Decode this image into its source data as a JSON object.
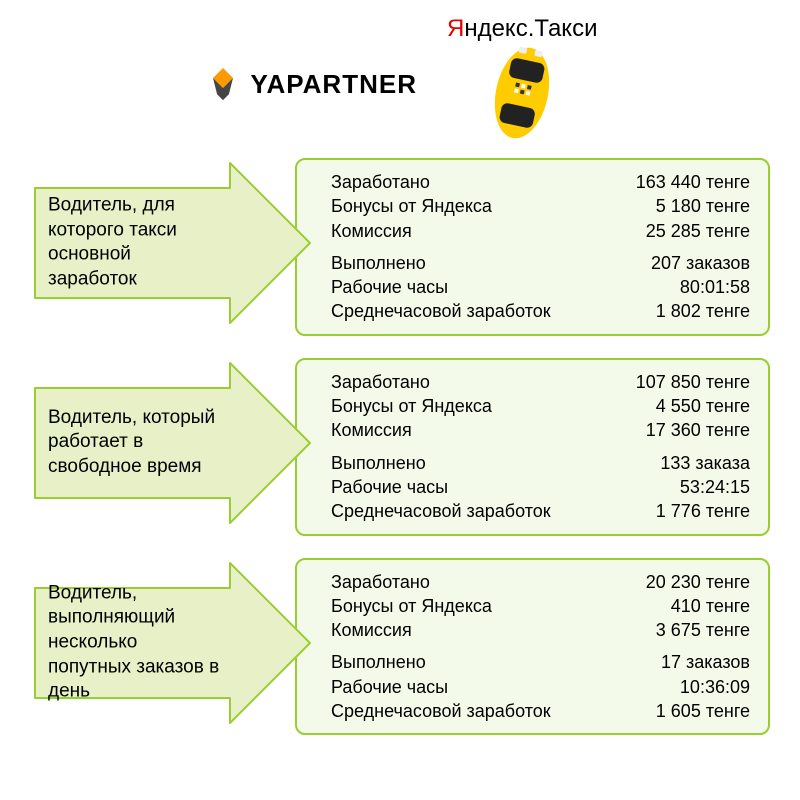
{
  "header": {
    "yapartner_text": "YAPARTNER",
    "yandex_first_letter": "Я",
    "yandex_rest": "ндекс.Такси"
  },
  "colors": {
    "arrow_fill": "#e8f0c8",
    "arrow_stroke": "#9acd32",
    "box_fill": "#f4faea",
    "box_border": "#9acd32",
    "yellow": "#ffcc00",
    "logo_orange": "#ff9900"
  },
  "sections": [
    {
      "driver_desc": "Водитель, для которого такси основной заработок",
      "stats_top": [
        {
          "label": "Заработано",
          "value": "163 440 тенге"
        },
        {
          "label": "Бонусы от Яндекса",
          "value": "5 180 тенге"
        },
        {
          "label": "Комиссия",
          "value": "25 285 тенге"
        }
      ],
      "stats_bottom": [
        {
          "label": "Выполнено",
          "value": "207 заказов"
        },
        {
          "label": "Рабочие часы",
          "value": "80:01:58"
        },
        {
          "label": "Среднечасовой заработок",
          "value": "1 802 тенге"
        }
      ]
    },
    {
      "driver_desc": "Водитель, который работает в свободное время",
      "stats_top": [
        {
          "label": "Заработано",
          "value": "107 850 тенге"
        },
        {
          "label": "Бонусы от Яндекса",
          "value": "4 550 тенге"
        },
        {
          "label": "Комиссия",
          "value": "17 360 тенге"
        }
      ],
      "stats_bottom": [
        {
          "label": "Выполнено",
          "value": "133 заказа"
        },
        {
          "label": "Рабочие часы",
          "value": "53:24:15"
        },
        {
          "label": "Среднечасовой заработок",
          "value": "1 776 тенге"
        }
      ]
    },
    {
      "driver_desc": "Водитель, выполняющий несколько попутных заказов в день",
      "stats_top": [
        {
          "label": "Заработано",
          "value": "20 230 тенге"
        },
        {
          "label": "Бонусы от Яндекса",
          "value": "410 тенге"
        },
        {
          "label": "Комиссия",
          "value": "3 675 тенге"
        }
      ],
      "stats_bottom": [
        {
          "label": "Выполнено",
          "value": "17 заказов"
        },
        {
          "label": "Рабочие часы",
          "value": "10:36:09"
        },
        {
          "label": "Среднечасовой заработок",
          "value": "1 605 тенге"
        }
      ]
    }
  ]
}
